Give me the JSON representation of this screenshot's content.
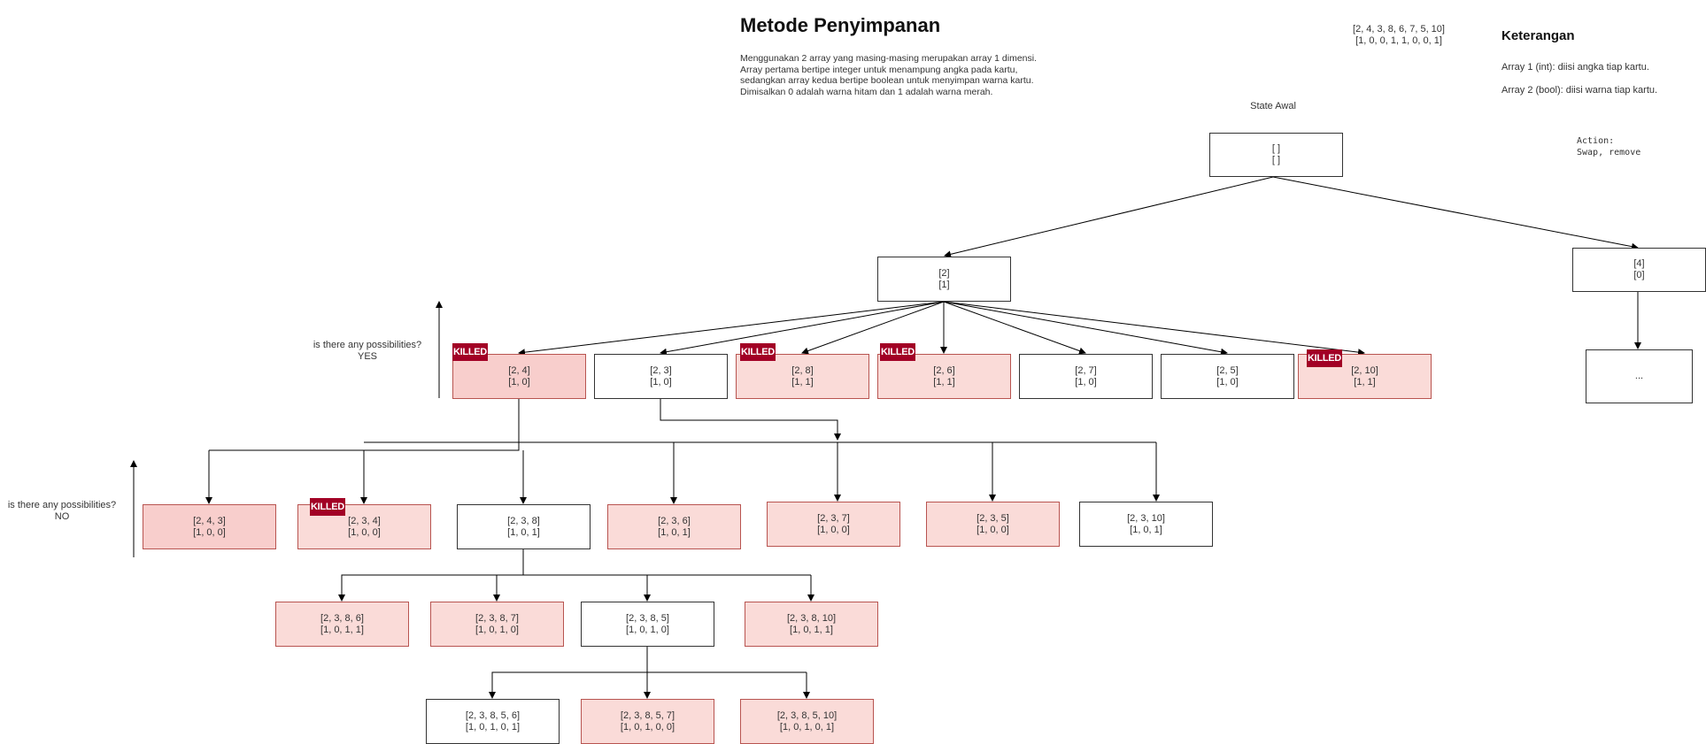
{
  "header": {
    "title": "Metode Penyimpanan",
    "description": [
      "Menggunakan 2 array yang masing-masing merupakan array 1 dimensi.",
      "Array pertama bertipe integer untuk menampung angka pada kartu,",
      "sedangkan array kedua bertipe boolean untuk menyimpan warna kartu.",
      "Dimisalkan 0 adalah warna hitam dan 1 adalah warna merah."
    ],
    "input_values": "[2, 4, 3, 8, 6, 7, 5, 10]",
    "input_colors": "[1, 0, 0, 1, 1, 0, 0, 1]"
  },
  "legend": {
    "title": "Keterangan",
    "array1": "Array 1 (int): diisi angka tiap kartu.",
    "array2": "Array 2 (bool): diisi warna tiap kartu.",
    "action_label": "Action:",
    "action_value": "Swap, remove"
  },
  "state_label": "State Awal",
  "killed_label": "KILLED",
  "annotations": {
    "q1": "is there any possibilities?",
    "a1": "YES",
    "q2": "is there any possibilities?",
    "a2": "NO"
  },
  "nodes": {
    "root": [
      "[ ]",
      "[ ]"
    ],
    "n2": [
      "[2]",
      "[1]"
    ],
    "n4": [
      "[4]",
      "[0]"
    ],
    "ellipsis": [
      "..."
    ],
    "n24": [
      "[2, 4]",
      "[1, 0]"
    ],
    "n23": [
      "[2, 3]",
      "[1, 0]"
    ],
    "n28": [
      "[2, 8]",
      "[1, 1]"
    ],
    "n26": [
      "[2, 6]",
      "[1, 1]"
    ],
    "n27": [
      "[2, 7]",
      "[1, 0]"
    ],
    "n25": [
      "[2, 5]",
      "[1, 0]"
    ],
    "n210": [
      "[2, 10]",
      "[1, 1]"
    ],
    "n243": [
      "[2, 4, 3]",
      "[1, 0, 0]"
    ],
    "n234": [
      "[2, 3, 4]",
      "[1, 0, 0]"
    ],
    "n238": [
      "[2, 3, 8]",
      "[1, 0, 1]"
    ],
    "n236": [
      "[2, 3, 6]",
      "[1, 0, 1]"
    ],
    "n237": [
      "[2, 3, 7]",
      "[1, 0, 0]"
    ],
    "n235": [
      "[2, 3, 5]",
      "[1, 0, 0]"
    ],
    "n2310": [
      "[2, 3, 10]",
      "[1, 0, 1]"
    ],
    "n2386": [
      "[2, 3, 8, 6]",
      "[1, 0, 1, 1]"
    ],
    "n2387": [
      "[2, 3, 8, 7]",
      "[1, 0, 1, 0]"
    ],
    "n2385": [
      "[2, 3, 8, 5]",
      "[1, 0, 1, 0]"
    ],
    "n23810": [
      "[2, 3, 8, 10]",
      "[1, 0, 1, 1]"
    ],
    "n23856": [
      "[2, 3, 8, 5, 6]",
      "[1, 0, 1, 0, 1]"
    ],
    "n23857": [
      "[2, 3, 8, 5, 7]",
      "[1, 0, 1, 0, 0]"
    ],
    "n238510": [
      "[2, 3, 8, 5, 10]",
      "[1, 0, 1, 0, 1]"
    ]
  },
  "colors": {
    "pink_fill": "#fadbd8",
    "pink_border": "#b85450",
    "killed_badge": "#a20025"
  }
}
